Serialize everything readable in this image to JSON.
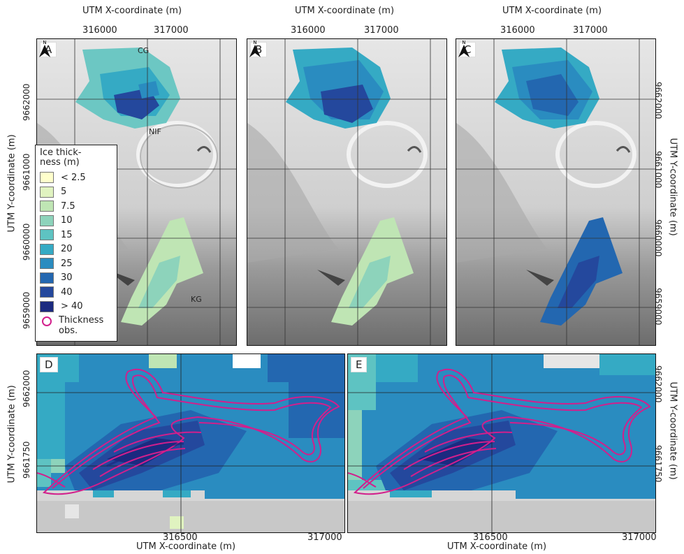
{
  "axes": {
    "x_title": "UTM X-coordinate (m)",
    "y_title": "UTM Y-coordinate (m)",
    "top_x_ticks": [
      "316000",
      "317000"
    ],
    "top_y_ticks": [
      "9662000",
      "9661000",
      "9660000",
      "9659000"
    ],
    "bottom_x_ticks": [
      "316500",
      "317000"
    ],
    "bottom_y_ticks": [
      "9662000",
      "9661750"
    ]
  },
  "panels": [
    {
      "id": "A",
      "label": "A"
    },
    {
      "id": "B",
      "label": "B"
    },
    {
      "id": "C",
      "label": "C"
    },
    {
      "id": "D",
      "label": "D"
    },
    {
      "id": "E",
      "label": "E"
    }
  ],
  "glacier_labels": {
    "cg": "CG",
    "nif": "NIF",
    "kg": "KG"
  },
  "legend": {
    "title": "Ice thick-ness (m)",
    "title_line1": "Ice thick-",
    "title_line2": "ness (m)",
    "classes": [
      {
        "label": "< 2.5",
        "color": "#ffffcc"
      },
      {
        "label": "5",
        "color": "#e0f3c0"
      },
      {
        "label": "7.5",
        "color": "#bfe5b4"
      },
      {
        "label": "10",
        "color": "#8dd3bb"
      },
      {
        "label": "15",
        "color": "#5ec3c2"
      },
      {
        "label": "20",
        "color": "#35aac4"
      },
      {
        "label": "25",
        "color": "#2a8cc0"
      },
      {
        "label": "30",
        "color": "#2367b0"
      },
      {
        "label": "40",
        "color": "#24489d"
      },
      {
        "label": "> 40",
        "color": "#1b2a80"
      }
    ],
    "obs_label": "Thickness obs.",
    "obs_line1": "Thickness",
    "obs_line2": "obs.",
    "obs_color": "#d21f8c"
  },
  "north_symbol": "N"
}
